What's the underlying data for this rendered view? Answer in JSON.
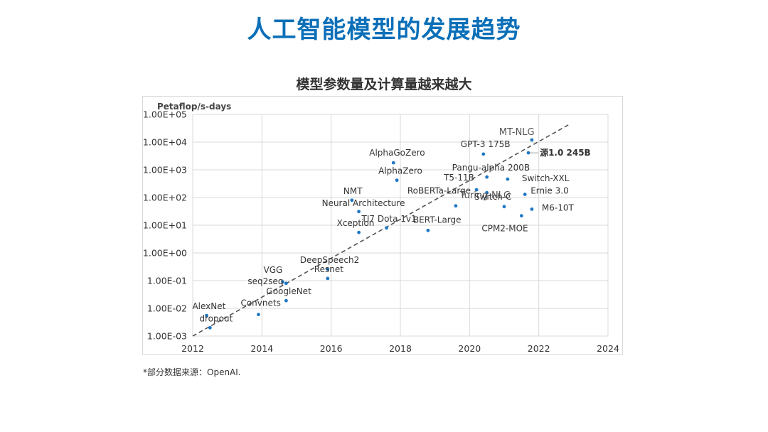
{
  "page": {
    "title": "人工智能模型的发展趋势",
    "footnote": "*部分数据来源：OpenAI."
  },
  "colors": {
    "title": "#0b6fb8",
    "point": "#1f77c4",
    "trend": "#555555",
    "grid": "#d9d9d9",
    "text": "#333333"
  },
  "chart_data": {
    "type": "scatter",
    "title": "模型参数量及计算量越来越大",
    "ylabel": "Petaflop/s-days",
    "xlabel": "",
    "yscale": "log",
    "xlim": [
      2012,
      2024
    ],
    "ylim": [
      0.001,
      100000
    ],
    "grid": true,
    "legend": "none",
    "x_ticks": [
      "2012",
      "2014",
      "2016",
      "2018",
      "2020",
      "2022",
      "2024"
    ],
    "y_ticks": [
      "1.00E-03",
      "1.00E-02",
      "1.00E-01",
      "1.00E+00",
      "1.00E+01",
      "1.00E+02",
      "1.00E+03",
      "1.00E+04",
      "1.00E+05"
    ],
    "trend_line": {
      "style": "dashed",
      "from": [
        2012,
        0.001
      ],
      "to": [
        2022.9,
        45000
      ]
    },
    "points": [
      {
        "label": "AlexNet",
        "x": 2012.4,
        "y": 0.0055
      },
      {
        "label": "dropout",
        "x": 2012.5,
        "y": 0.002
      },
      {
        "label": "Convnets",
        "x": 2013.9,
        "y": 0.006
      },
      {
        "label": "VGG",
        "x": 2014.6,
        "y": 0.09
      },
      {
        "label": "seq2seq",
        "x": 2014.7,
        "y": 0.08
      },
      {
        "label": "GoogleNet",
        "x": 2014.7,
        "y": 0.019
      },
      {
        "label": "DeepSpeech2",
        "x": 2015.9,
        "y": 0.26
      },
      {
        "label": "Resnet",
        "x": 2015.9,
        "y": 0.12
      },
      {
        "label": "NMT",
        "x": 2016.6,
        "y": 80
      },
      {
        "label": "Neural Architecture",
        "x": 2016.8,
        "y": 31
      },
      {
        "label": "Xception",
        "x": 2016.8,
        "y": 5.5
      },
      {
        "label": "TI7 Dota 1v1",
        "x": 2017.6,
        "y": 8
      },
      {
        "label": "AlphaGoZero",
        "x": 2017.8,
        "y": 1800
      },
      {
        "label": "AlphaZero",
        "x": 2017.9,
        "y": 420
      },
      {
        "label": "BERT-Large",
        "x": 2018.8,
        "y": 6.5
      },
      {
        "label": "RoBERTa-Large",
        "x": 2019.6,
        "y": 50
      },
      {
        "label": "T5-11B",
        "x": 2020.2,
        "y": 190
      },
      {
        "label": "GPT-3 175B",
        "x": 2020.4,
        "y": 3700
      },
      {
        "label": "Turing-NLG",
        "x": 2020.5,
        "y": 150
      },
      {
        "label": "Pangu-alpha 200B",
        "x": 2020.5,
        "y": 550
      },
      {
        "label": "Switch-C",
        "x": 2021.0,
        "y": 47
      },
      {
        "label": "Switch-XXL",
        "x": 2021.1,
        "y": 460
      },
      {
        "label": "CPM2-MOE",
        "x": 2021.5,
        "y": 22
      },
      {
        "label": "Ernie 3.0",
        "x": 2021.6,
        "y": 130
      },
      {
        "label": "源1.0 245B",
        "x": 2021.7,
        "y": 4100
      },
      {
        "label": "MT-NLG",
        "x": 2021.8,
        "y": 12000
      },
      {
        "label": "M6-10T",
        "x": 2021.8,
        "y": 38
      }
    ]
  }
}
